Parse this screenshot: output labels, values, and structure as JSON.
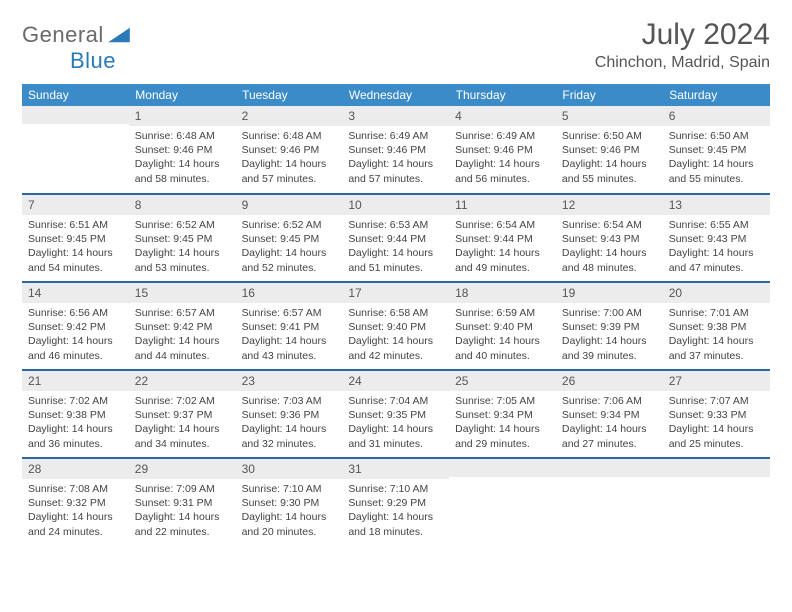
{
  "logo": {
    "text1": "General",
    "text2": "Blue",
    "color1": "#6a6a6a",
    "color2": "#2a7ab8",
    "shape_color": "#2a7ab8"
  },
  "header": {
    "title": "July 2024",
    "location": "Chinchon, Madrid, Spain"
  },
  "colors": {
    "header_bg": "#3b8bc8",
    "header_text": "#ffffff",
    "daynum_bg": "#ececec",
    "daynum_text": "#565656",
    "border": "#2a6aa0",
    "body_text": "#444444"
  },
  "weekdays": [
    "Sunday",
    "Monday",
    "Tuesday",
    "Wednesday",
    "Thursday",
    "Friday",
    "Saturday"
  ],
  "weeks": [
    [
      {
        "num": "",
        "lines": []
      },
      {
        "num": "1",
        "lines": [
          "Sunrise: 6:48 AM",
          "Sunset: 9:46 PM",
          "Daylight: 14 hours",
          "and 58 minutes."
        ]
      },
      {
        "num": "2",
        "lines": [
          "Sunrise: 6:48 AM",
          "Sunset: 9:46 PM",
          "Daylight: 14 hours",
          "and 57 minutes."
        ]
      },
      {
        "num": "3",
        "lines": [
          "Sunrise: 6:49 AM",
          "Sunset: 9:46 PM",
          "Daylight: 14 hours",
          "and 57 minutes."
        ]
      },
      {
        "num": "4",
        "lines": [
          "Sunrise: 6:49 AM",
          "Sunset: 9:46 PM",
          "Daylight: 14 hours",
          "and 56 minutes."
        ]
      },
      {
        "num": "5",
        "lines": [
          "Sunrise: 6:50 AM",
          "Sunset: 9:46 PM",
          "Daylight: 14 hours",
          "and 55 minutes."
        ]
      },
      {
        "num": "6",
        "lines": [
          "Sunrise: 6:50 AM",
          "Sunset: 9:45 PM",
          "Daylight: 14 hours",
          "and 55 minutes."
        ]
      }
    ],
    [
      {
        "num": "7",
        "lines": [
          "Sunrise: 6:51 AM",
          "Sunset: 9:45 PM",
          "Daylight: 14 hours",
          "and 54 minutes."
        ]
      },
      {
        "num": "8",
        "lines": [
          "Sunrise: 6:52 AM",
          "Sunset: 9:45 PM",
          "Daylight: 14 hours",
          "and 53 minutes."
        ]
      },
      {
        "num": "9",
        "lines": [
          "Sunrise: 6:52 AM",
          "Sunset: 9:45 PM",
          "Daylight: 14 hours",
          "and 52 minutes."
        ]
      },
      {
        "num": "10",
        "lines": [
          "Sunrise: 6:53 AM",
          "Sunset: 9:44 PM",
          "Daylight: 14 hours",
          "and 51 minutes."
        ]
      },
      {
        "num": "11",
        "lines": [
          "Sunrise: 6:54 AM",
          "Sunset: 9:44 PM",
          "Daylight: 14 hours",
          "and 49 minutes."
        ]
      },
      {
        "num": "12",
        "lines": [
          "Sunrise: 6:54 AM",
          "Sunset: 9:43 PM",
          "Daylight: 14 hours",
          "and 48 minutes."
        ]
      },
      {
        "num": "13",
        "lines": [
          "Sunrise: 6:55 AM",
          "Sunset: 9:43 PM",
          "Daylight: 14 hours",
          "and 47 minutes."
        ]
      }
    ],
    [
      {
        "num": "14",
        "lines": [
          "Sunrise: 6:56 AM",
          "Sunset: 9:42 PM",
          "Daylight: 14 hours",
          "and 46 minutes."
        ]
      },
      {
        "num": "15",
        "lines": [
          "Sunrise: 6:57 AM",
          "Sunset: 9:42 PM",
          "Daylight: 14 hours",
          "and 44 minutes."
        ]
      },
      {
        "num": "16",
        "lines": [
          "Sunrise: 6:57 AM",
          "Sunset: 9:41 PM",
          "Daylight: 14 hours",
          "and 43 minutes."
        ]
      },
      {
        "num": "17",
        "lines": [
          "Sunrise: 6:58 AM",
          "Sunset: 9:40 PM",
          "Daylight: 14 hours",
          "and 42 minutes."
        ]
      },
      {
        "num": "18",
        "lines": [
          "Sunrise: 6:59 AM",
          "Sunset: 9:40 PM",
          "Daylight: 14 hours",
          "and 40 minutes."
        ]
      },
      {
        "num": "19",
        "lines": [
          "Sunrise: 7:00 AM",
          "Sunset: 9:39 PM",
          "Daylight: 14 hours",
          "and 39 minutes."
        ]
      },
      {
        "num": "20",
        "lines": [
          "Sunrise: 7:01 AM",
          "Sunset: 9:38 PM",
          "Daylight: 14 hours",
          "and 37 minutes."
        ]
      }
    ],
    [
      {
        "num": "21",
        "lines": [
          "Sunrise: 7:02 AM",
          "Sunset: 9:38 PM",
          "Daylight: 14 hours",
          "and 36 minutes."
        ]
      },
      {
        "num": "22",
        "lines": [
          "Sunrise: 7:02 AM",
          "Sunset: 9:37 PM",
          "Daylight: 14 hours",
          "and 34 minutes."
        ]
      },
      {
        "num": "23",
        "lines": [
          "Sunrise: 7:03 AM",
          "Sunset: 9:36 PM",
          "Daylight: 14 hours",
          "and 32 minutes."
        ]
      },
      {
        "num": "24",
        "lines": [
          "Sunrise: 7:04 AM",
          "Sunset: 9:35 PM",
          "Daylight: 14 hours",
          "and 31 minutes."
        ]
      },
      {
        "num": "25",
        "lines": [
          "Sunrise: 7:05 AM",
          "Sunset: 9:34 PM",
          "Daylight: 14 hours",
          "and 29 minutes."
        ]
      },
      {
        "num": "26",
        "lines": [
          "Sunrise: 7:06 AM",
          "Sunset: 9:34 PM",
          "Daylight: 14 hours",
          "and 27 minutes."
        ]
      },
      {
        "num": "27",
        "lines": [
          "Sunrise: 7:07 AM",
          "Sunset: 9:33 PM",
          "Daylight: 14 hours",
          "and 25 minutes."
        ]
      }
    ],
    [
      {
        "num": "28",
        "lines": [
          "Sunrise: 7:08 AM",
          "Sunset: 9:32 PM",
          "Daylight: 14 hours",
          "and 24 minutes."
        ]
      },
      {
        "num": "29",
        "lines": [
          "Sunrise: 7:09 AM",
          "Sunset: 9:31 PM",
          "Daylight: 14 hours",
          "and 22 minutes."
        ]
      },
      {
        "num": "30",
        "lines": [
          "Sunrise: 7:10 AM",
          "Sunset: 9:30 PM",
          "Daylight: 14 hours",
          "and 20 minutes."
        ]
      },
      {
        "num": "31",
        "lines": [
          "Sunrise: 7:10 AM",
          "Sunset: 9:29 PM",
          "Daylight: 14 hours",
          "and 18 minutes."
        ]
      },
      {
        "num": "",
        "lines": []
      },
      {
        "num": "",
        "lines": []
      },
      {
        "num": "",
        "lines": []
      }
    ]
  ]
}
